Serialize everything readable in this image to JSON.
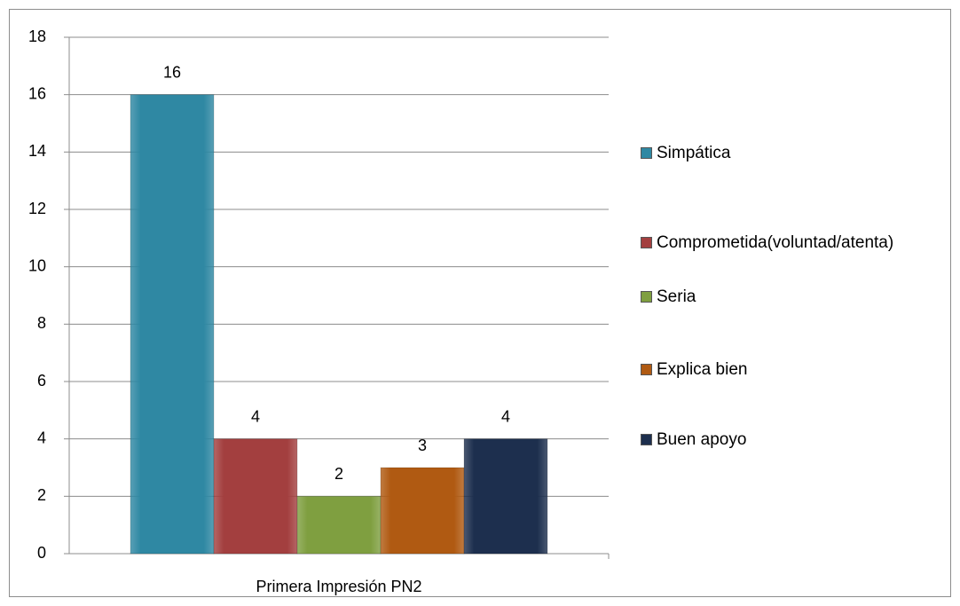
{
  "chart_data": {
    "type": "bar",
    "categories": [
      "Primera Impresión PN2"
    ],
    "series": [
      {
        "name": "Simpática",
        "color": "#2f88a3",
        "values": [
          16
        ]
      },
      {
        "name": "Comprometida(voluntad/atenta)",
        "color": "#a33f3f",
        "values": [
          4
        ]
      },
      {
        "name": "Seria",
        "color": "#7f9f40",
        "values": [
          2
        ]
      },
      {
        "name": "Explica bien",
        "color": "#b05a12",
        "values": [
          3
        ]
      },
      {
        "name": "Buen apoyo",
        "color": "#1d2f4e",
        "values": [
          4
        ]
      }
    ],
    "ylim": [
      0,
      18
    ],
    "yticks": [
      0,
      2,
      4,
      6,
      8,
      10,
      12,
      14,
      16,
      18
    ],
    "grid": true,
    "legend": "right"
  }
}
